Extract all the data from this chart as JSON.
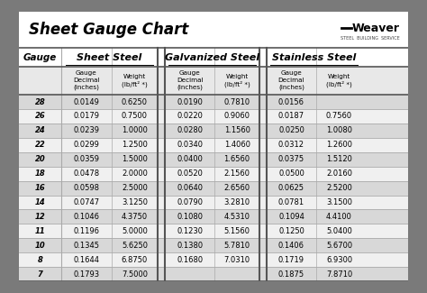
{
  "title": "Sheet Gauge Chart",
  "outer_bg": "#7a7a7a",
  "inner_bg": "#ffffff",
  "gauges": [
    28,
    26,
    24,
    22,
    20,
    18,
    16,
    14,
    12,
    11,
    10,
    8,
    7
  ],
  "sheet_steel": {
    "decimal": [
      "0.0149",
      "0.0179",
      "0.0239",
      "0.0299",
      "0.0359",
      "0.0478",
      "0.0598",
      "0.0747",
      "0.1046",
      "0.1196",
      "0.1345",
      "0.1644",
      "0.1793"
    ],
    "weight": [
      "0.6250",
      "0.7500",
      "1.0000",
      "1.2500",
      "1.5000",
      "2.0000",
      "2.5000",
      "3.1250",
      "4.3750",
      "5.0000",
      "5.6250",
      "6.8750",
      "7.5000"
    ]
  },
  "galvanized_steel": {
    "decimal": [
      "0.0190",
      "0.0220",
      "0.0280",
      "0.0340",
      "0.0400",
      "0.0520",
      "0.0640",
      "0.0790",
      "0.1080",
      "0.1230",
      "0.1380",
      "0.1680",
      ""
    ],
    "weight": [
      "0.7810",
      "0.9060",
      "1.1560",
      "1.4060",
      "1.6560",
      "2.1560",
      "2.6560",
      "3.2810",
      "4.5310",
      "5.1560",
      "5.7810",
      "7.0310",
      ""
    ]
  },
  "stainless_steel": {
    "decimal": [
      "0.0156",
      "0.0187",
      "0.0250",
      "0.0312",
      "0.0375",
      "0.0500",
      "0.0625",
      "0.0781",
      "0.1094",
      "0.1250",
      "0.1406",
      "0.1719",
      "0.1875"
    ],
    "weight": [
      "",
      "0.7560",
      "1.0080",
      "1.2600",
      "1.5120",
      "2.0160",
      "2.5200",
      "3.1500",
      "4.4100",
      "5.0400",
      "5.6700",
      "6.9300",
      "7.8710"
    ]
  },
  "row_colors": [
    "#d8d8d8",
    "#f0f0f0"
  ],
  "header_row0_color": "#ffffff",
  "header_row1_color": "#e8e8e8",
  "gauge_col_color": "#e8e8e8",
  "section_div_color": "#888888",
  "line_color": "#aaaaaa",
  "border_color": "#555555"
}
